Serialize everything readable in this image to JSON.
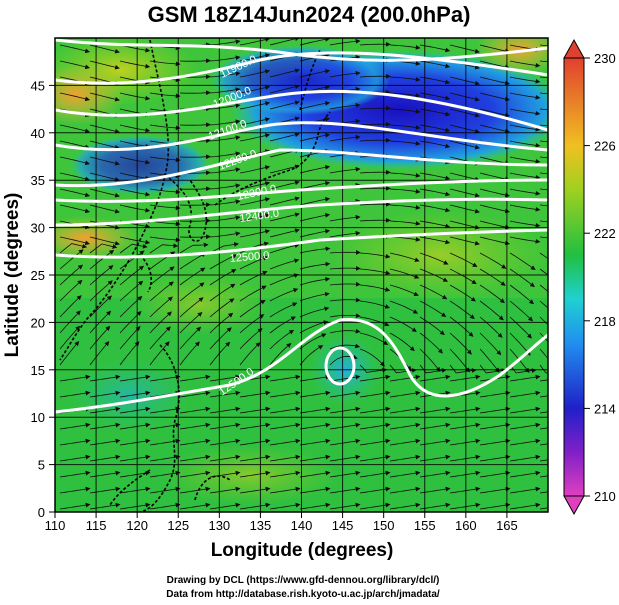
{
  "title": "GSM 18Z14Jun2024 (200.0hPa)",
  "x_axis": {
    "label": "Longitude (degrees)",
    "ticks": [
      "110",
      "115",
      "120",
      "125",
      "130",
      "135",
      "140",
      "145",
      "150",
      "155",
      "160",
      "165"
    ]
  },
  "y_axis": {
    "label": "Latitude (degrees)",
    "ticks": [
      "0",
      "5",
      "10",
      "15",
      "20",
      "25",
      "30",
      "35",
      "40",
      "45"
    ]
  },
  "colorbar": {
    "ticks": [
      "210",
      "214",
      "218",
      "222",
      "226",
      "230"
    ]
  },
  "contour_labels": [
    "11900.0",
    "12000.0",
    "12100.0",
    "12200.0",
    "12300.0",
    "12400.0",
    "12500.0",
    "12500.0"
  ],
  "credits": {
    "line1": "Drawing by DCL (https://www.gfd-dennou.org/library/dcl/)",
    "line2": "Data from http://database.rish.kyoto-u.ac.jp/arch/jmadata/"
  },
  "colors": {
    "low": "#2020c8",
    "mid": "#20c040",
    "high": "#e04030",
    "contour": "#ffffff",
    "streamline": "#101010"
  }
}
